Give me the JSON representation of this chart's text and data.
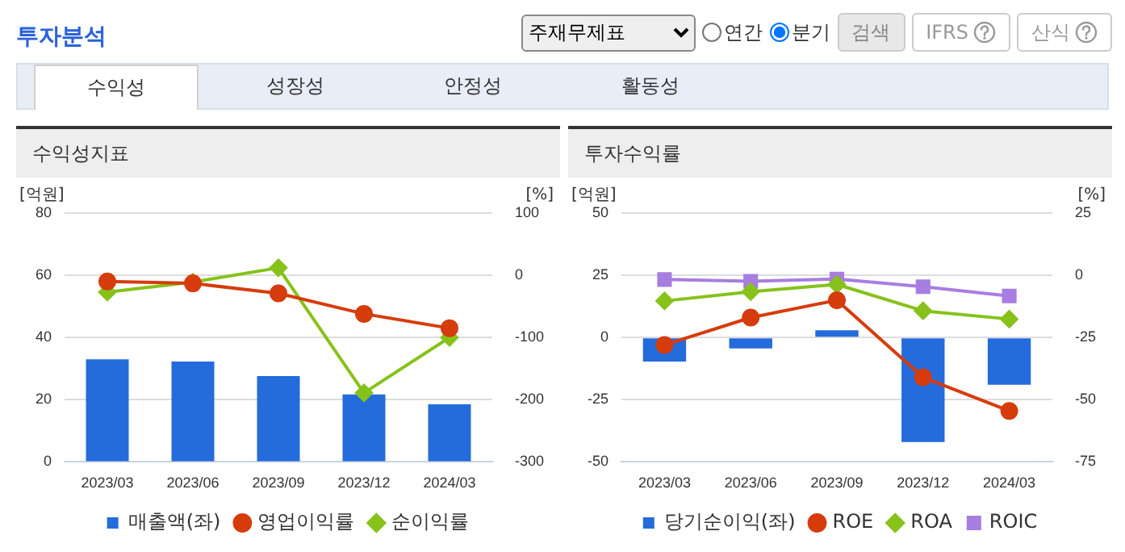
{
  "chart_data": [
    {
      "type": "bar",
      "title": "수익성지표",
      "ylabel": "[억원]",
      "y2label": "[%]",
      "annotations": [
        "투자분석",
        "주재무제표",
        "연간",
        "분기",
        "검색",
        "IFRS",
        "산식",
        "수익성",
        "성장성",
        "안정성",
        "활동성"
      ],
      "categories": [
        "2023/03",
        "2023/06",
        "2023/09",
        "2023/12",
        "2024/03"
      ],
      "series": [
        {
          "name": "매출액(좌)",
          "color": "#246bdb",
          "values": [
            33,
            32.3,
            27.6,
            21.7,
            18.5
          ]
        },
        {
          "name": "영업이익률",
          "type": "line",
          "axis": "y2",
          "marker": "circle",
          "color": "#d63c0c",
          "values": [
            -10,
            -13,
            -29,
            -62,
            -85
          ]
        },
        {
          "name": "순이익률",
          "type": "line",
          "axis": "y2",
          "marker": "diamond",
          "color": "#86c21a",
          "values": [
            -27,
            -11,
            12,
            -189,
            -100
          ]
        }
      ],
      "ylim": [
        0,
        80
      ],
      "yticks": [
        0,
        20,
        40,
        60,
        80
      ],
      "y2lim": [
        -300,
        100
      ],
      "y2ticks": [
        -300,
        -200,
        -100,
        0,
        100
      ],
      "grid": "y",
      "legend": "bottom"
    },
    {
      "type": "bar",
      "title": "투자수익률",
      "ylabel": "[억원]",
      "y2label": "[%]",
      "categories": [
        "2023/03",
        "2023/06",
        "2023/09",
        "2023/12",
        "2024/03"
      ],
      "series": [
        {
          "name": "당기순이익(좌)",
          "color": "#246bdb",
          "values": [
            -9.7,
            -4.4,
            2.9,
            -42,
            -19
          ]
        },
        {
          "name": "ROE",
          "type": "line",
          "axis": "y2",
          "marker": "circle",
          "color": "#d63c0c",
          "values": [
            -28,
            -17,
            -10,
            -41,
            -54.5
          ]
        },
        {
          "name": "ROA",
          "type": "line",
          "axis": "y2",
          "marker": "diamond",
          "color": "#86c21a",
          "values": [
            -10.3,
            -6.6,
            -3.7,
            -14.3,
            -17.6
          ]
        },
        {
          "name": "ROIC",
          "type": "line",
          "axis": "y2",
          "marker": "square",
          "color": "#a77ee0",
          "values": [
            -1.7,
            -2.4,
            -1.5,
            -4.6,
            -8.3
          ]
        }
      ],
      "ylim": [
        -50,
        50
      ],
      "yticks": [
        -50,
        -25,
        0,
        25,
        50
      ],
      "y2lim": [
        -75,
        25
      ],
      "y2ticks": [
        -75,
        -50,
        -25,
        0,
        25
      ],
      "grid": "y",
      "legend": "bottom"
    }
  ]
}
